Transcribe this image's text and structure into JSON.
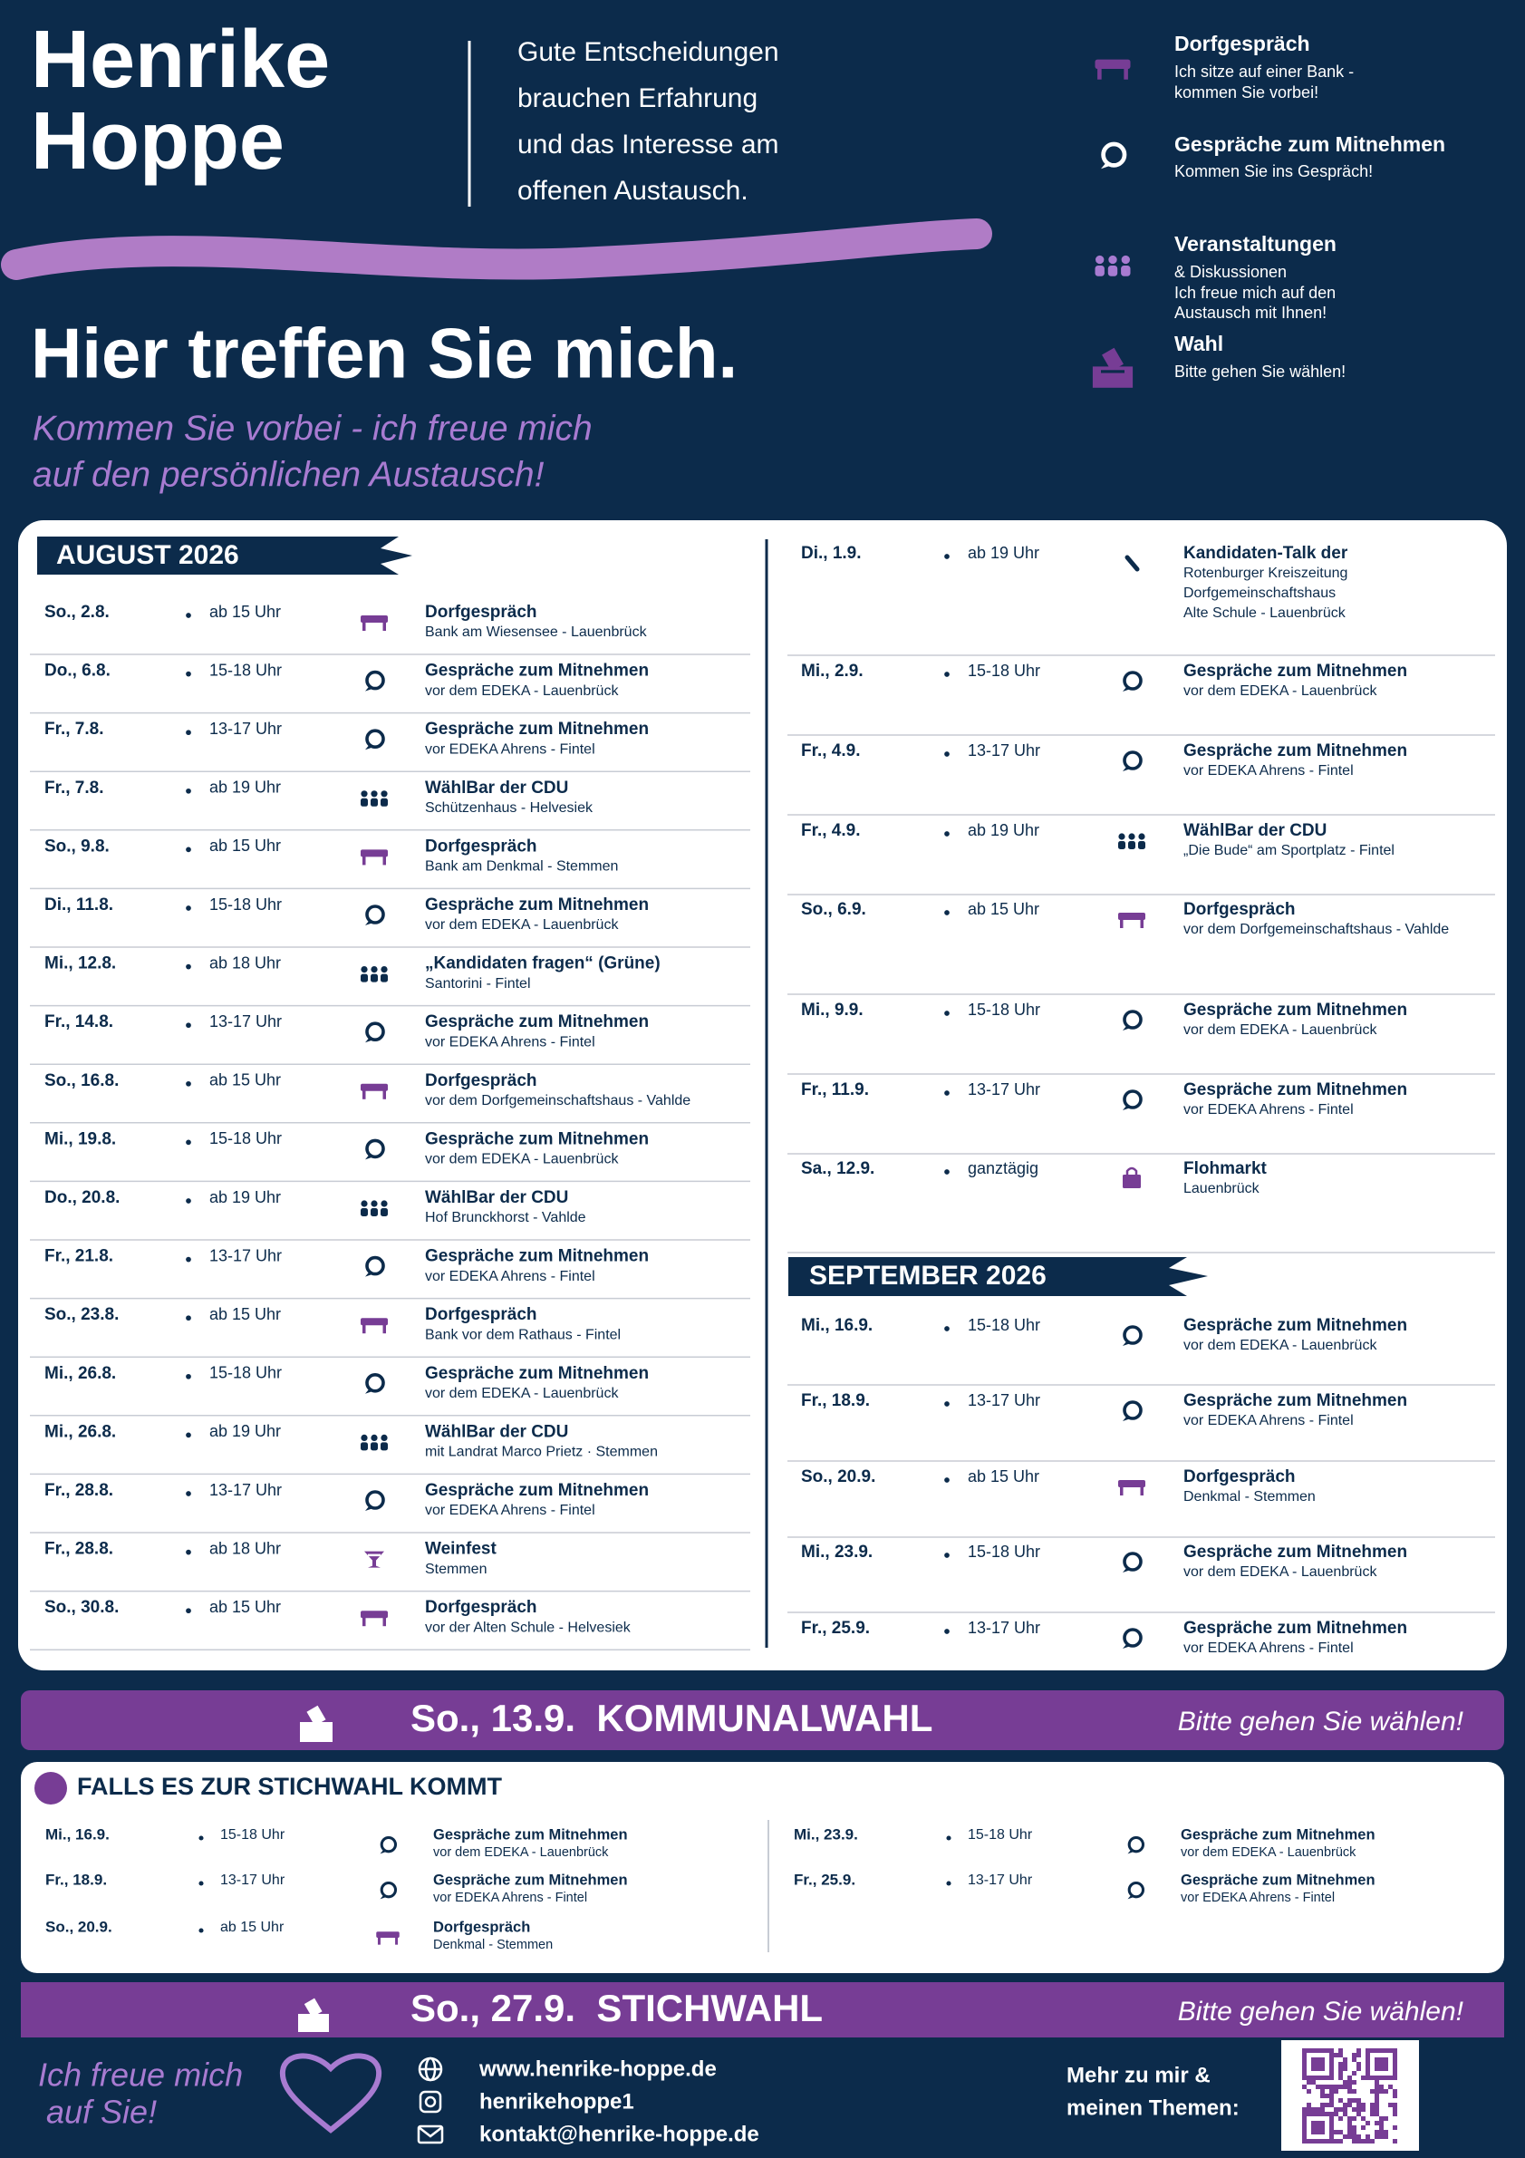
{
  "header": {
    "name": [
      "Henrike",
      "Hoppe"
    ],
    "slogan": [
      "Gute Entscheidungen",
      "brauchen Erfahrung",
      "und das Interesse am",
      "offenen Austausch."
    ],
    "legend": [
      {
        "title": "Dorfgespräch",
        "lines": [
          "Ich sitze auf einer Bank -",
          "kommen Sie vorbei!"
        ]
      },
      {
        "title": "Gespräche zum Mitnehmen",
        "lines": [
          "Kommen Sie ins Gespräch!"
        ]
      },
      {
        "title": "Veranstaltungen",
        "lines": [
          "& Diskussionen",
          "Ich freue mich auf den",
          "Austausch mit Ihnen!"
        ]
      },
      {
        "title": "Wahl",
        "lines": [
          "Bitte gehen Sie wählen!"
        ]
      }
    ],
    "headline": "Hier treffen Sie mich.",
    "subline": [
      "Kommen Sie vorbei - ich freue mich",
      "auf den persönlichen Austausch!"
    ]
  },
  "schedule": {
    "august": {
      "title": "AUGUST 2026",
      "events": [
        {
          "date": "So., 2.8.",
          "time": "ab 15 Uhr",
          "title": "Dorfgespräch",
          "place": "Bank am Wiesensee - Lauenbrück"
        },
        {
          "date": "Do., 6.8.",
          "time": "15-18 Uhr",
          "title": "Gespräche zum Mitnehmen",
          "place": "vor dem EDEKA - Lauenbrück"
        },
        {
          "date": "Fr., 7.8.",
          "time": "13-17 Uhr",
          "title": "Gespräche zum Mitnehmen",
          "place": "vor EDEKA Ahrens - Fintel"
        },
        {
          "date": "Fr., 7.8.",
          "time": "ab 19 Uhr",
          "title": "WählBar der CDU",
          "place": "Schützenhaus - Helvesiek"
        },
        {
          "date": "So., 9.8.",
          "time": "ab 15 Uhr",
          "title": "Dorfgespräch",
          "place": "Bank am Denkmal - Stemmen"
        },
        {
          "date": "Di., 11.8.",
          "time": "15-18 Uhr",
          "title": "Gespräche zum Mitnehmen",
          "place": "vor dem EDEKA - Lauenbrück"
        },
        {
          "date": "Mi., 12.8.",
          "time": "ab 18 Uhr",
          "title": "„Kandidaten fragen“ (Grüne)",
          "place": "Santorini - Fintel"
        },
        {
          "date": "Fr., 14.8.",
          "time": "13-17 Uhr",
          "title": "Gespräche zum Mitnehmen",
          "place": "vor EDEKA Ahrens - Fintel"
        },
        {
          "date": "So., 16.8.",
          "time": "ab 15 Uhr",
          "title": "Dorfgespräch",
          "place": "vor dem Dorfgemeinschaftshaus - Vahlde"
        },
        {
          "date": "Mi., 19.8.",
          "time": "15-18 Uhr",
          "title": "Gespräche zum Mitnehmen",
          "place": "vor dem EDEKA - Lauenbrück"
        },
        {
          "date": "Do., 20.8.",
          "time": "ab 19 Uhr",
          "title": "WählBar der CDU",
          "place": "Hof Brunckhorst - Vahlde"
        },
        {
          "date": "Fr., 21.8.",
          "time": "13-17 Uhr",
          "title": "Gespräche zum Mitnehmen",
          "place": "vor EDEKA Ahrens - Fintel"
        },
        {
          "date": "So., 23.8.",
          "time": "ab 15 Uhr",
          "title": "Dorfgespräch",
          "place": "Bank vor dem Rathaus - Fintel"
        },
        {
          "date": "Mi., 26.8.",
          "time": "15-18 Uhr",
          "title": "Gespräche zum Mitnehmen",
          "place": "vor dem EDEKA - Lauenbrück"
        },
        {
          "date": "Mi., 26.8.",
          "time": "ab 19 Uhr",
          "title": "WählBar der CDU",
          "place": "mit Landrat Marco Prietz · Stemmen"
        },
        {
          "date": "Fr., 28.8.",
          "time": "13-17 Uhr",
          "title": "Gespräche zum Mitnehmen",
          "place": "vor EDEKA Ahrens - Fintel"
        },
        {
          "date": "Fr., 28.8.",
          "time": "ab 18 Uhr",
          "title": "Weinfest",
          "place": "Stemmen"
        },
        {
          "date": "So., 30.8.",
          "time": "ab 15 Uhr",
          "title": "Dorfgespräch",
          "place": "vor der Alten Schule - Helvesiek"
        }
      ]
    },
    "early_september": {
      "events": [
        {
          "date": "Di., 1.9.",
          "time": "ab 19 Uhr",
          "title": "Kandidaten-Talk der",
          "place": [
            "Rotenburger Kreiszeitung",
            "Dorfgemeinschaftshaus",
            "Alte Schule - Lauenbrück"
          ]
        },
        {
          "date": "Mi., 2.9.",
          "time": "15-18 Uhr",
          "title": "Gespräche zum Mitnehmen",
          "place": "vor dem EDEKA - Lauenbrück"
        },
        {
          "date": "Fr., 4.9.",
          "time": "13-17 Uhr",
          "title": "Gespräche zum Mitnehmen",
          "place": "vor EDEKA Ahrens - Fintel"
        },
        {
          "date": "Fr., 4.9.",
          "time": "ab 19 Uhr",
          "title": "WählBar der CDU",
          "place": "„Die Bude“ am Sportplatz - Fintel"
        },
        {
          "date": "So., 6.9.",
          "time": "ab 15 Uhr",
          "title": "Dorfgespräch",
          "place": "vor dem Dorfgemeinschaftshaus - Vahlde"
        },
        {
          "date": "Mi., 9.9.",
          "time": "15-18 Uhr",
          "title": "Gespräche zum Mitnehmen",
          "place": "vor dem EDEKA - Lauenbrück"
        },
        {
          "date": "Fr., 11.9.",
          "time": "13-17 Uhr",
          "title": "Gespräche zum Mitnehmen",
          "place": "vor EDEKA Ahrens - Fintel"
        },
        {
          "date": "Sa., 12.9.",
          "time": "ganztägig",
          "title": "Flohmarkt",
          "place": "Lauenbrück"
        }
      ]
    },
    "september": {
      "title": "SEPTEMBER 2026",
      "events": [
        {
          "date": "Mi., 16.9.",
          "time": "15-18 Uhr",
          "title": "Gespräche zum Mitnehmen",
          "place": "vor dem EDEKA - Lauenbrück"
        },
        {
          "date": "Fr., 18.9.",
          "time": "13-17 Uhr",
          "title": "Gespräche zum Mitnehmen",
          "place": "vor EDEKA Ahrens - Fintel"
        },
        {
          "date": "So., 20.9.",
          "time": "ab 15 Uhr",
          "title": "Dorfgespräch",
          "place": "Denkmal - Stemmen"
        },
        {
          "date": "Mi., 23.9.",
          "time": "15-18 Uhr",
          "title": "Gespräche zum Mitnehmen",
          "place": "vor dem EDEKA - Lauenbrück"
        },
        {
          "date": "Fr., 25.9.",
          "time": "13-17 Uhr",
          "title": "Gespräche zum Mitnehmen",
          "place": "vor EDEKA Ahrens - Fintel"
        }
      ]
    }
  },
  "election": {
    "label": "So., 13.9.  KOMMUNALWAHL",
    "note": "Bitte gehen Sie wählen!"
  },
  "runoff": {
    "title": "FALLS ES ZUR STICHWAHL KOMMT",
    "left": [
      {
        "date": "Mi., 16.9.",
        "time": "15-18 Uhr",
        "title": "Gespräche zum Mitnehmen",
        "place": "vor dem EDEKA - Lauenbrück"
      },
      {
        "date": "Fr., 18.9.",
        "time": "13-17 Uhr",
        "title": "Gespräche zum Mitnehmen",
        "place": "vor EDEKA Ahrens - Fintel"
      },
      {
        "date": "So., 20.9.",
        "time": "ab 15 Uhr",
        "title": "Dorfgespräch",
        "place": "Denkmal - Stemmen"
      }
    ],
    "right": [
      {
        "date": "Mi., 23.9.",
        "time": "15-18 Uhr",
        "title": "Gespräche zum Mitnehmen",
        "place": "vor dem EDEKA - Lauenbrück"
      },
      {
        "date": "Fr., 25.9.",
        "time": "13-17 Uhr",
        "title": "Gespräche zum Mitnehmen",
        "place": "vor EDEKA Ahrens - Fintel"
      }
    ]
  },
  "runoff_election": {
    "label": "So., 27.9.  STICHWAHL",
    "note": "Bitte gehen Sie wählen!"
  },
  "footer": {
    "greeting": [
      "Ich freue mich",
      "auf Sie!"
    ],
    "links": [
      "www.henrike-hoppe.de",
      "henrikehoppe1",
      "kontakt@henrike-hoppe.de"
    ],
    "more": [
      "Mehr zu mir &",
      "meinen Themen:"
    ]
  }
}
